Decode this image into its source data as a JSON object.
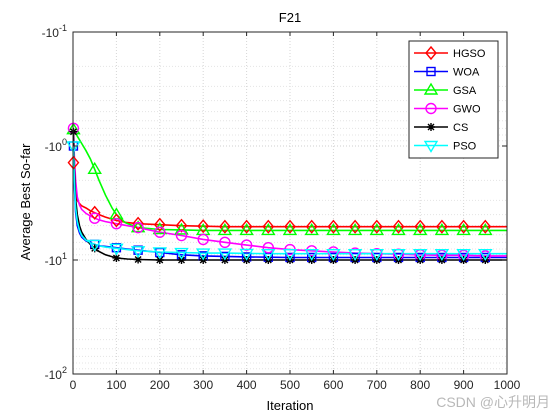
{
  "chart_data": {
    "type": "line",
    "title": "F21",
    "xlabel": "Iteration",
    "ylabel": "Average Best So-far",
    "xlim": [
      0,
      1000
    ],
    "ylim": [
      -100,
      -0.1
    ],
    "yscale": "log (negative values)",
    "grid": true,
    "legend_position": "top-right",
    "x_ticks": [
      0,
      100,
      200,
      300,
      400,
      500,
      600,
      700,
      800,
      900,
      1000
    ],
    "y_ticks": [
      {
        "value": -0.1,
        "label_base": "-10",
        "label_exp": "-1"
      },
      {
        "value": -1,
        "label_base": "-10",
        "label_exp": "0"
      },
      {
        "value": -10,
        "label_base": "-10",
        "label_exp": "1"
      },
      {
        "value": -100,
        "label_base": "-10",
        "label_exp": "2"
      }
    ],
    "marker_x": [
      1,
      50,
      100,
      150,
      200,
      250,
      300,
      350,
      400,
      450,
      500,
      550,
      600,
      650,
      700,
      750,
      800,
      850,
      900,
      950
    ],
    "series": [
      {
        "name": "HGSO",
        "color": "#ff0000",
        "marker": "diamond",
        "x": [
          1,
          3,
          6,
          10,
          15,
          20,
          30,
          40,
          50,
          60,
          75,
          100,
          125,
          150,
          200,
          250,
          300,
          350,
          400,
          450,
          500,
          550,
          600,
          650,
          700,
          750,
          800,
          850,
          900,
          950,
          1000
        ],
        "y": [
          -1.4,
          -1.8,
          -2.6,
          -3.0,
          -3.2,
          -3.35,
          -3.5,
          -3.7,
          -3.85,
          -4.0,
          -4.2,
          -4.5,
          -4.7,
          -4.8,
          -4.9,
          -5.0,
          -5.05,
          -5.1,
          -5.1,
          -5.1,
          -5.1,
          -5.1,
          -5.1,
          -5.1,
          -5.1,
          -5.1,
          -5.1,
          -5.1,
          -5.1,
          -5.1,
          -5.1
        ]
      },
      {
        "name": "WOA",
        "color": "#0000ff",
        "marker": "square",
        "x": [
          1,
          3,
          6,
          10,
          15,
          20,
          30,
          40,
          50,
          60,
          75,
          100,
          125,
          150,
          200,
          250,
          300,
          350,
          400,
          450,
          500,
          550,
          600,
          650,
          700,
          750,
          800,
          850,
          900,
          950,
          1000
        ],
        "y": [
          -1.0,
          -2.2,
          -3.8,
          -5.0,
          -5.8,
          -6.3,
          -6.8,
          -7.1,
          -7.3,
          -7.5,
          -7.6,
          -7.8,
          -8.0,
          -8.2,
          -8.6,
          -9.0,
          -9.2,
          -9.3,
          -9.4,
          -9.45,
          -9.5,
          -9.5,
          -9.5,
          -9.5,
          -9.5,
          -9.5,
          -9.5,
          -9.5,
          -9.5,
          -9.5,
          -9.5
        ]
      },
      {
        "name": "GSA",
        "color": "#00ff00",
        "marker": "triangle-up",
        "x": [
          1,
          5,
          10,
          20,
          30,
          40,
          50,
          60,
          75,
          90,
          100,
          120,
          150,
          200,
          250,
          300,
          350,
          400,
          450,
          500,
          550,
          600,
          650,
          700,
          750,
          800,
          850,
          900,
          950,
          1000
        ],
        "y": [
          -0.72,
          -0.75,
          -0.82,
          -0.95,
          -1.1,
          -1.3,
          -1.6,
          -2.0,
          -2.7,
          -3.5,
          -4.0,
          -4.7,
          -5.2,
          -5.4,
          -5.45,
          -5.5,
          -5.5,
          -5.5,
          -5.5,
          -5.5,
          -5.5,
          -5.5,
          -5.5,
          -5.5,
          -5.5,
          -5.5,
          -5.5,
          -5.5,
          -5.5,
          -5.5
        ]
      },
      {
        "name": "GWO",
        "color": "#ff00ff",
        "marker": "circle",
        "x": [
          1,
          3,
          6,
          10,
          15,
          20,
          30,
          40,
          50,
          60,
          75,
          100,
          125,
          150,
          200,
          250,
          300,
          350,
          400,
          450,
          500,
          550,
          600,
          650,
          700,
          750,
          800,
          850,
          900,
          950,
          1000
        ],
        "y": [
          -0.7,
          -1.2,
          -2.0,
          -2.8,
          -3.3,
          -3.6,
          -3.9,
          -4.1,
          -4.3,
          -4.45,
          -4.6,
          -4.8,
          -5.0,
          -5.2,
          -5.7,
          -6.1,
          -6.6,
          -7.0,
          -7.4,
          -7.8,
          -8.1,
          -8.3,
          -8.5,
          -8.7,
          -8.8,
          -8.9,
          -9.0,
          -9.1,
          -9.1,
          -9.2,
          -9.2
        ]
      },
      {
        "name": "CS",
        "color": "#000000",
        "marker": "asterisk",
        "x": [
          1,
          3,
          6,
          10,
          15,
          20,
          30,
          40,
          50,
          60,
          75,
          100,
          125,
          150,
          200,
          250,
          300,
          350,
          400,
          450,
          500,
          550,
          600,
          650,
          700,
          750,
          800,
          850,
          900,
          950,
          1000
        ],
        "y": [
          -0.75,
          -1.6,
          -2.9,
          -4.0,
          -5.0,
          -5.7,
          -6.6,
          -7.3,
          -7.9,
          -8.4,
          -9.0,
          -9.6,
          -9.8,
          -9.9,
          -10.0,
          -10.0,
          -10.0,
          -10.0,
          -10.0,
          -10.0,
          -10.0,
          -10.0,
          -10.0,
          -10.0,
          -10.0,
          -10.0,
          -10.0,
          -10.0,
          -10.0,
          -10.0,
          -10.0
        ]
      },
      {
        "name": "PSO",
        "color": "#00ffff",
        "marker": "triangle-down",
        "x": [
          1,
          3,
          6,
          10,
          15,
          20,
          30,
          40,
          50,
          60,
          75,
          100,
          125,
          150,
          200,
          250,
          300,
          350,
          400,
          450,
          500,
          550,
          600,
          650,
          700,
          750,
          800,
          850,
          900,
          950,
          1000
        ],
        "y": [
          -1.0,
          -2.0,
          -3.5,
          -4.6,
          -5.5,
          -6.1,
          -6.7,
          -7.0,
          -7.3,
          -7.5,
          -7.7,
          -7.9,
          -8.1,
          -8.3,
          -8.5,
          -8.6,
          -8.7,
          -8.7,
          -8.75,
          -8.8,
          -8.8,
          -8.8,
          -8.8,
          -8.8,
          -8.8,
          -8.8,
          -8.8,
          -8.8,
          -8.8,
          -8.8,
          -8.8
        ]
      }
    ]
  },
  "watermark": "CSDN @心升明月"
}
